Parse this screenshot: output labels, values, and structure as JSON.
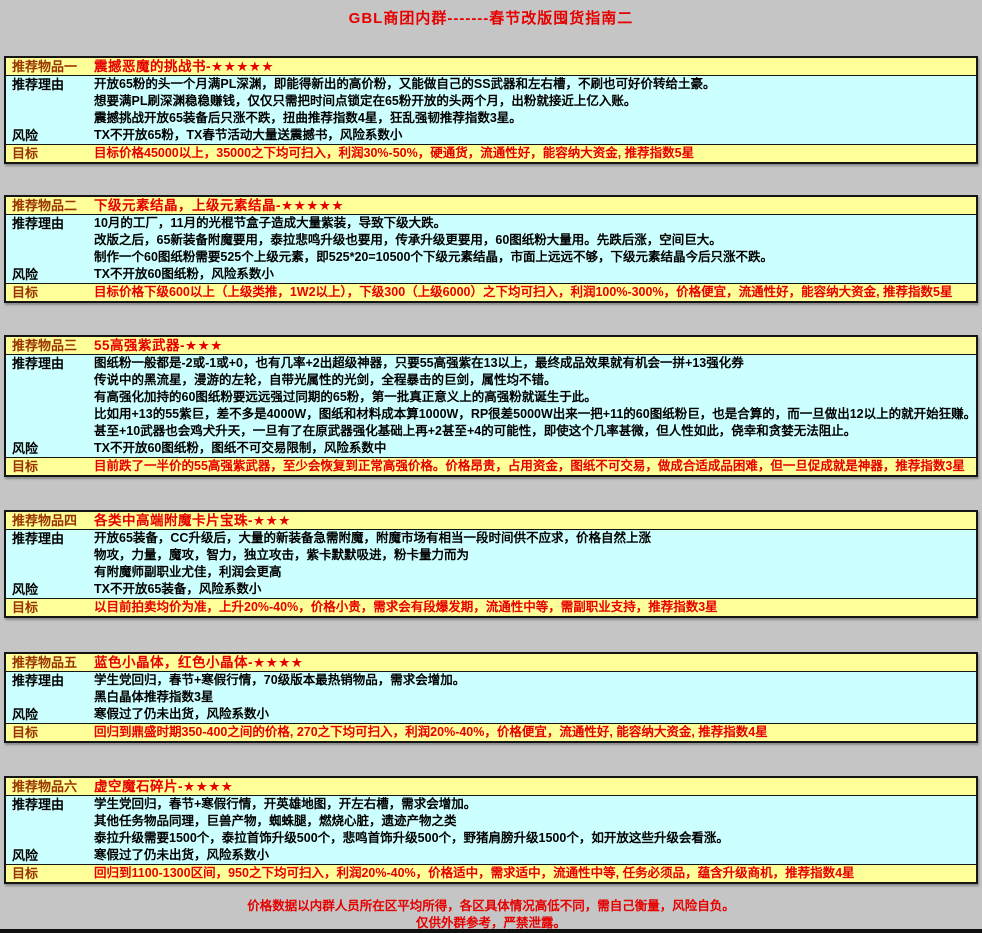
{
  "page": {
    "title": "GBL商团内群-------春节改版囤货指南二"
  },
  "labels": {
    "reason": "推荐理由",
    "risk": "风险",
    "target": "目标"
  },
  "colors": {
    "page_bg": "#c5c5c5",
    "card_header_bg": "#ffff99",
    "card_body_bg": "#ccffff",
    "label_brown": "#993300",
    "accent_red": "#e60000",
    "border_black": "#151515"
  },
  "sections": [
    {
      "label": "推荐物品一",
      "item": "震撼恶魔的挑战书-★★★★★",
      "reasons": [
        "开放65粉的头一个月满PL深渊，即能得新出的高价粉，又能做自己的SS武器和左右槽，不刷也可好价转给土豪。",
        "想要满PL刷深渊稳稳赚钱，仅仅只需把时间点锁定在65粉开放的头两个月，出粉就接近上亿入账。",
        "震撼挑战开放65装备后只涨不跌，扭曲推荐指数4星，狂乱强韧推荐指数3星。"
      ],
      "risk": "TX不开放65粉，TX春节活动大量送震撼书，风险系数小",
      "target": "目标价格45000以上，35000之下均可扫入，利润30%-50%，硬通货，流通性好，能容纳大资金, 推荐指数5星"
    },
    {
      "label": "推荐物品二",
      "item": "下级元素结晶，上级元素结晶-★★★★★",
      "reasons": [
        "10月的工厂，11月的光棍节盒子造成大量紫装，导致下级大跌。",
        "改版之后，65新装备附魔要用，泰拉悲鸣升级也要用，传承升级更要用，60图纸粉大量用。先跌后涨，空间巨大。",
        "制作一个60图纸粉需要525个上级元素，即525*20=10500个下级元素结晶，市面上远远不够，下级元素结晶今后只涨不跌。"
      ],
      "risk": "TX不开放60图纸粉，风险系数小",
      "target": "目标价格下级600以上（上级类推，1W2以上），下级300（上级6000）之下均可扫入，利润100%-300%，价格便宜，流通性好，能容纳大资金, 推荐指数5星"
    },
    {
      "label": "推荐物品三",
      "item": "55高强紫武器-★★★",
      "reasons": [
        "图纸粉一般都是-2或-1或+0，也有几率+2出超级神器，只要55高强紫在13以上，最终成品效果就有机会一拼+13强化券",
        "传说中的黑流星，漫游的左轮，自带光属性的光剑，全程暴击的巨剑，属性均不错。",
        "有高强化加持的60图纸粉要远远强过同期的65粉，第一批真正意义上的高强粉就诞生于此。",
        "比如用+13的55紫巨，差不多是4000W，图纸和材料成本算1000W，RP很差5000W出来一把+11的60图纸粉巨，也是合算的，而一旦做出12以上的就开始狂赚。",
        "甚至+10武器也会鸡犬升天，一旦有了在原武器强化基础上再+2甚至+4的可能性，即使这个几率甚微，但人性如此，侥幸和贪婪无法阻止。"
      ],
      "risk": "TX不开放60图纸粉，图纸不可交易限制，风险系数中",
      "target": "目前跌了一半价的55高强紫武器，至少会恢复到正常高强价格。价格昂贵，占用资金，图纸不可交易，做成合适成品困难，但一旦促成就是神器，推荐指数3星"
    },
    {
      "label": "推荐物品四",
      "item": "各类中高端附魔卡片宝珠-★★★",
      "reasons": [
        "开放65装备，CC升级后，大量的新装备急需附魔，附魔市场有相当一段时间供不应求，价格自然上涨",
        "物攻，力量，魔攻，智力，独立攻击，紫卡默默吸进，粉卡量力而为",
        "有附魔师副职业尤佳，利润会更高"
      ],
      "risk": "TX不开放65装备，风险系数小",
      "target": "以目前拍卖均价为准，上升20%-40%，价格小贵，需求会有段爆发期，流通性中等，需副职业支持，推荐指数3星"
    },
    {
      "label": "推荐物品五",
      "item": "蓝色小晶体，红色小晶体-★★★★",
      "reasons": [
        "学生党回归，春节+寒假行情，70级版本最热销物品，需求会增加。",
        "黑白晶体推荐指数3星"
      ],
      "risk": "寒假过了仍未出货，风险系数小",
      "target": "回归到鼎盛时期350-400之间的价格, 270之下均可扫入，利润20%-40%，价格便宜，流通性好, 能容纳大资金, 推荐指数4星"
    },
    {
      "label": "推荐物品六",
      "item": "虚空魔石碎片-★★★★",
      "reasons": [
        "学生党回归，春节+寒假行情，开英雄地图，开左右槽，需求会增加。",
        "其他任务物品同理，巨兽产物，蜘蛛腿，燃烧心脏，遗迹产物之类",
        "泰拉升级需要1500个，泰拉首饰升级500个，悲鸣首饰升级500个，野猪肩膀升级1500个，如开放这些升级会看涨。"
      ],
      "risk": "寒假过了仍未出货，风险系数小",
      "target": "回归到1100-1300区间，950之下均可扫入，利润20%-40%，价格适中，需求适中，流通性中等, 任务必须品，蕴含升级商机，推荐指数4星"
    }
  ],
  "footer": {
    "line1": "价格数据以内群人员所在区平均所得，各区具体情况高低不同，需自己衡量，风险自负。",
    "line2": "仅供外群参考，严禁泄露。"
  }
}
